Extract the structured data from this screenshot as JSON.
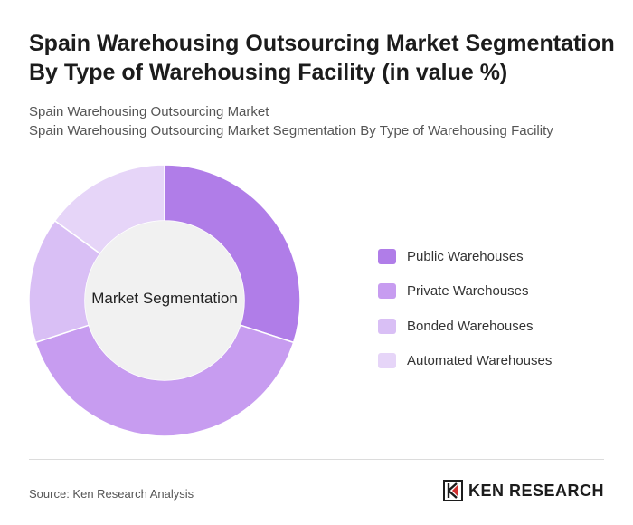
{
  "header": {
    "title": "Spain Warehousing Outsourcing Market Segmentation By Type of Warehousing Facility (in value %)",
    "subtitle_line1": "Spain Warehousing Outsourcing Market",
    "subtitle_line2": "Spain Warehousing Outsourcing Market Segmentation By Type of Warehousing Facility"
  },
  "chart_data": {
    "type": "pie",
    "variant": "donut",
    "center_label": "Market Segmentation",
    "categories": [
      "Public Warehouses",
      "Private Warehouses",
      "Bonded Warehouses",
      "Automated Warehouses"
    ],
    "values": [
      30,
      40,
      15,
      15
    ],
    "colors": [
      "#b07de8",
      "#c79cf0",
      "#d9bff5",
      "#e6d5f8"
    ],
    "legend_position": "right"
  },
  "footer": {
    "source": "Source: Ken Research Analysis",
    "logo_text": "KEN RESEARCH"
  }
}
